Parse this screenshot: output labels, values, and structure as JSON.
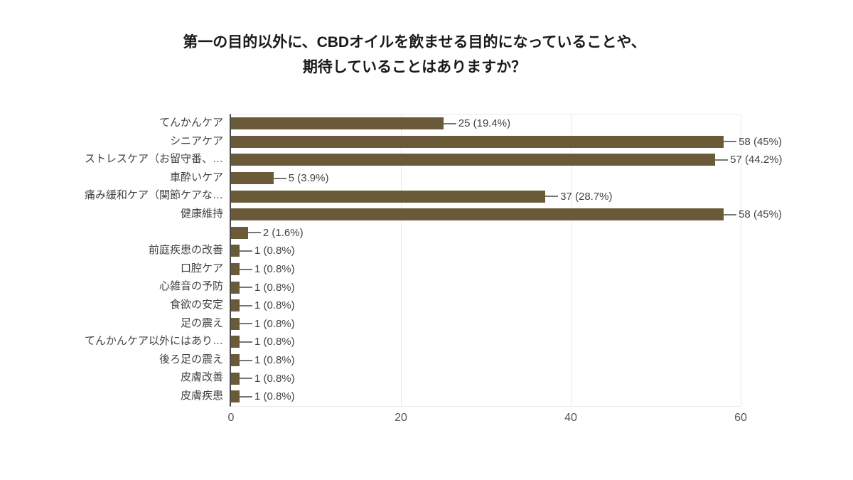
{
  "title": {
    "lines": [
      "第一の目的以外に、CBDオイルを飲ませる目的になっていることや、",
      "期待していることはありますか？"
    ]
  },
  "chart_data": {
    "type": "bar",
    "orientation": "horizontal",
    "title": "第一の目的以外に、CBDオイルを飲ませる目的になっていることや、期待していることはありますか？",
    "categories": [
      "てんかんケア",
      "シニアケア",
      "ストレスケア（お留守番、…",
      "車酔いケア",
      "痛み緩和ケア（関節ケアな…",
      "健康維持",
      "",
      "前庭疾患の改善",
      "口腔ケア",
      "心雑音の予防",
      "食欲の安定",
      "足の震え",
      "てんかんケア以外にはあり…",
      "後ろ足の震え",
      "皮膚改善",
      "皮膚疾患"
    ],
    "values": [
      25,
      58,
      57,
      5,
      37,
      58,
      2,
      1,
      1,
      1,
      1,
      1,
      1,
      1,
      1,
      1
    ],
    "percents": [
      19.4,
      45,
      44.2,
      3.9,
      28.7,
      45,
      1.6,
      0.8,
      0.8,
      0.8,
      0.8,
      0.8,
      0.8,
      0.8,
      0.8,
      0.8
    ],
    "value_labels": [
      "25 (19.4%)",
      "58 (45%)",
      "57 (44.2%)",
      "5 (3.9%)",
      "37 (28.7%)",
      "58 (45%)",
      "2 (1.6%)",
      "1 (0.8%)",
      "1 (0.8%)",
      "1 (0.8%)",
      "1 (0.8%)",
      "1 (0.8%)",
      "1 (0.8%)",
      "1 (0.8%)",
      "1 (0.8%)",
      "1 (0.8%)"
    ],
    "xlabel": "",
    "ylabel": "",
    "xlim": [
      0,
      60
    ],
    "x_ticks": [
      0,
      20,
      40,
      60
    ],
    "grid": true,
    "legend": "none",
    "bar_color": "#6a5a37",
    "leader_color": "#757575",
    "label_color": "#424242",
    "axis_color": "#4a4a4a",
    "gridline_color": "#e8eaed"
  }
}
